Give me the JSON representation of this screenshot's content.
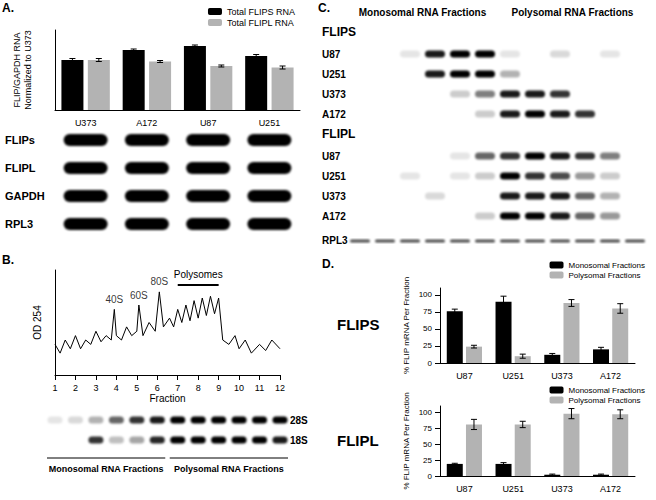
{
  "figure": {
    "panel_labels": [
      "A.",
      "B.",
      "C.",
      "D."
    ],
    "blot_a": {
      "rows": [
        {
          "label": "FLIPs",
          "bands": [
            1,
            1,
            1,
            1
          ]
        },
        {
          "label": "FLIPL",
          "bands": [
            1,
            1,
            1,
            1
          ]
        },
        {
          "label": "GAPDH",
          "bands": [
            1,
            1,
            1,
            1
          ]
        },
        {
          "label": "RPL3",
          "bands": [
            1,
            1,
            1,
            1
          ]
        }
      ]
    },
    "gel_b": {
      "rows": [
        {
          "label": "28S",
          "bands": [
            0.1,
            0.15,
            0.3,
            0.6,
            0.8,
            0.9,
            1,
            1,
            1,
            1,
            1,
            1
          ]
        },
        {
          "label": "18S",
          "bands": [
            0,
            0,
            0.8,
            0.25,
            0.35,
            0.85,
            1,
            1,
            1,
            1,
            1,
            0.9
          ]
        }
      ],
      "groups": [
        {
          "label": "Monosomal RNA Fractions",
          "lanes": 6
        },
        {
          "label": "Polysomal RNA Fractions",
          "lanes": 6
        }
      ]
    },
    "gel_c": {
      "groups": [
        {
          "label": "Monosomal RNA Fractions",
          "lanes": 6
        },
        {
          "label": "Polysomal RNA Fractions",
          "lanes": 6
        }
      ],
      "sections": [
        {
          "title": "FLIPS",
          "rows": [
            {
              "label": "U87",
              "bands": [
                0,
                0,
                0.1,
                0.9,
                1,
                1,
                0.1,
                0,
                0.15,
                0,
                0.1,
                0
              ]
            },
            {
              "label": "U251",
              "bands": [
                0,
                0,
                0,
                0.9,
                1,
                1,
                0.3,
                0,
                0,
                0,
                0,
                0
              ]
            },
            {
              "label": "U373",
              "bands": [
                0,
                0,
                0,
                0,
                0.2,
                0.5,
                0.9,
                0.9,
                0.8,
                0,
                0,
                0
              ]
            },
            {
              "label": "A172",
              "bands": [
                0,
                0,
                0,
                0,
                0,
                0.2,
                0.9,
                1,
                0.9,
                0.8,
                0,
                0
              ]
            }
          ]
        },
        {
          "title": "FLIPL",
          "rows": [
            {
              "label": "U87",
              "bands": [
                0,
                0,
                0,
                0,
                0.1,
                0.6,
                0.8,
                1,
                0.9,
                0.8,
                0.5,
                0
              ]
            },
            {
              "label": "U251",
              "bands": [
                0,
                0,
                0.1,
                0,
                0.1,
                0.2,
                1,
                0.8,
                0.7,
                0.4,
                0.2,
                0
              ]
            },
            {
              "label": "U373",
              "bands": [
                0,
                0,
                0,
                0.15,
                0,
                0,
                0.9,
                0.9,
                0.9,
                0.6,
                0.3,
                0
              ]
            },
            {
              "label": "A172",
              "bands": [
                0,
                0,
                0,
                0,
                0,
                0.2,
                1,
                1,
                0.9,
                0.6,
                0.4,
                0
              ]
            }
          ]
        }
      ],
      "rows": [
        {
          "label": "RPL3",
          "bands": [
            0.7,
            0.7,
            0.7,
            0.7,
            0.7,
            0.7,
            0.7,
            0.7,
            0.7,
            0.7,
            0.7,
            0.7
          ]
        }
      ]
    }
  },
  "chart_data": [
    {
      "type": "bar",
      "categories": [
        "U373",
        "A172",
        "U87",
        "U251"
      ],
      "series": [
        {
          "name": "Total FLIPS RNA",
          "color": "#000000",
          "values": [
            1.0,
            1.2,
            1.28,
            1.08
          ],
          "errors": [
            0.03,
            0.02,
            0.02,
            0.03
          ]
        },
        {
          "name": "Total FLIPL RNA",
          "color": "#b3b3b3",
          "values": [
            1.0,
            0.97,
            0.88,
            0.85
          ],
          "errors": [
            0.03,
            0.02,
            0.02,
            0.03
          ]
        }
      ],
      "ylabel": "FLIP/GAPDH RNA\nNormalized to U373",
      "ylim": [
        0,
        1.6
      ],
      "tick_labels": "x",
      "legend": "upper right",
      "grid": false
    },
    {
      "type": "line",
      "color": "#000000",
      "x": [
        1,
        1.25,
        1.5,
        1.75,
        2,
        2.25,
        2.5,
        2.75,
        3,
        3.25,
        3.5,
        3.75,
        3.9,
        4,
        4.25,
        4.5,
        4.75,
        5,
        5.1,
        5.3,
        5.6,
        5.9,
        6.1,
        6.3,
        6.6,
        6.8,
        7,
        7.2,
        7.4,
        7.6,
        7.8,
        8,
        8.2,
        8.4,
        8.6,
        8.8,
        9,
        9.2,
        9.5,
        9.8,
        10,
        10.3,
        10.6,
        11,
        11.3,
        11.6,
        12
      ],
      "values": [
        35,
        25,
        40,
        30,
        45,
        30,
        40,
        35,
        50,
        38,
        45,
        40,
        75,
        45,
        40,
        55,
        45,
        50,
        80,
        45,
        60,
        50,
        95,
        55,
        65,
        55,
        75,
        60,
        80,
        62,
        85,
        65,
        88,
        68,
        90,
        70,
        88,
        40,
        35,
        45,
        30,
        40,
        25,
        35,
        28,
        40,
        30
      ],
      "xlabel": "Fraction",
      "ylabel": "OD 254",
      "xlim": [
        1,
        12
      ],
      "xticks": [
        1,
        2,
        3,
        4,
        5,
        6,
        7,
        8,
        9,
        10,
        11,
        12
      ],
      "ylim": [
        0,
        120
      ],
      "tick_labels": "x",
      "grid": false,
      "annotations": [
        {
          "text": "40S",
          "x": 3.9,
          "y": 75
        },
        {
          "text": "60S",
          "x": 5.1,
          "y": 80
        },
        {
          "text": "80S",
          "x": 6.1,
          "y": 95
        },
        {
          "text": "Polysomes",
          "x": [
            7,
            9
          ],
          "y": 103
        }
      ]
    },
    {
      "type": "bar",
      "title": "FLIPS",
      "categories": [
        "U87",
        "U251",
        "U373",
        "A172"
      ],
      "series": [
        {
          "name": "Monosomal Fractions",
          "color": "#000000",
          "values": [
            76,
            90,
            12,
            20
          ],
          "errors": [
            3,
            8,
            2,
            3
          ]
        },
        {
          "name": "Polysomal Fractions",
          "color": "#b3b3b3",
          "values": [
            24,
            10,
            88,
            80
          ],
          "errors": [
            2,
            3,
            5,
            7
          ]
        }
      ],
      "ylabel": "% FLIP mRNA Per Fraction",
      "ylim": [
        0,
        110
      ],
      "yticks": [
        0,
        25,
        50,
        75,
        100
      ],
      "legend": "upper right",
      "grid": false
    },
    {
      "type": "bar",
      "title": "FLIPL",
      "categories": [
        "U87",
        "U251",
        "U373",
        "A172"
      ],
      "series": [
        {
          "name": "Monosomal Fractions",
          "color": "#000000",
          "values": [
            19,
            19,
            2,
            2
          ],
          "errors": [
            1,
            2,
            1,
            1
          ]
        },
        {
          "name": "Polysomal Fractions",
          "color": "#b3b3b3",
          "values": [
            81,
            81,
            98,
            97
          ],
          "errors": [
            8,
            5,
            8,
            7
          ]
        }
      ],
      "ylabel": "% FLIP mRNA Per Fraction",
      "ylim": [
        0,
        110
      ],
      "yticks": [
        0,
        25,
        50,
        75,
        100
      ],
      "legend": "upper right",
      "grid": false
    }
  ]
}
